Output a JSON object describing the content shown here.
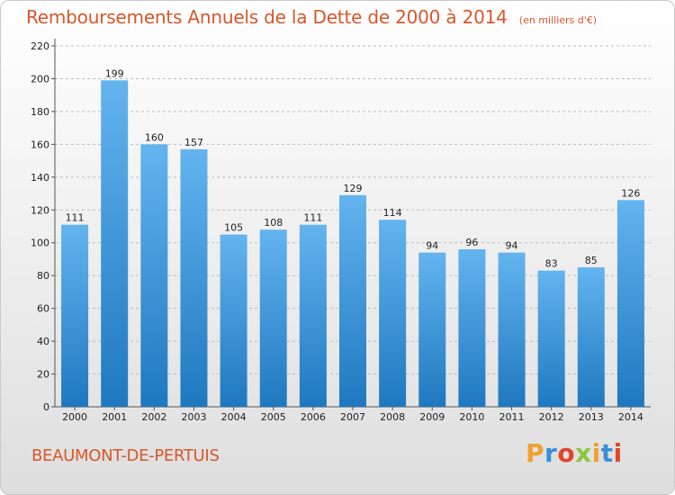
{
  "header": {
    "title": "Remboursements Annuels de la Dette de 2000 à 2014",
    "unit": "(en milliers d'€)"
  },
  "footer": {
    "town": "BEAUMONT-DE-PERTUIS",
    "logo_text": "Proxiti",
    "logo_letters": [
      {
        "ch": "P",
        "color": "#f0a030"
      },
      {
        "ch": "r",
        "color": "#3a8fd8"
      },
      {
        "ch": "o",
        "color": "#e0452a"
      },
      {
        "ch": "x",
        "color": "#8cc63f"
      },
      {
        "ch": "i",
        "color": "#f0a030"
      },
      {
        "ch": "t",
        "color": "#3a8fd8"
      },
      {
        "ch": "i",
        "color": "#e0452a"
      }
    ]
  },
  "colors": {
    "bar_top": "#63b4ef",
    "bar_bottom": "#1f78bf",
    "title": "#d8572a",
    "grid": "#bdbdbd"
  },
  "chart_data": {
    "type": "bar",
    "title": "Remboursements Annuels de la Dette de 2000 à 2014",
    "subtitle": "(en milliers d'€)",
    "xlabel": "",
    "ylabel": "",
    "categories": [
      "2000",
      "2001",
      "2002",
      "2003",
      "2004",
      "2005",
      "2006",
      "2007",
      "2008",
      "2009",
      "2010",
      "2011",
      "2012",
      "2013",
      "2014"
    ],
    "values": [
      111,
      199,
      160,
      157,
      105,
      108,
      111,
      129,
      114,
      94,
      96,
      94,
      83,
      85,
      126
    ],
    "ylim": [
      0,
      220
    ],
    "yticks": [
      0,
      20,
      40,
      60,
      80,
      100,
      120,
      140,
      160,
      180,
      200,
      220
    ],
    "grid": true,
    "grid_style": "dashed horizontal",
    "data_labels": true
  }
}
